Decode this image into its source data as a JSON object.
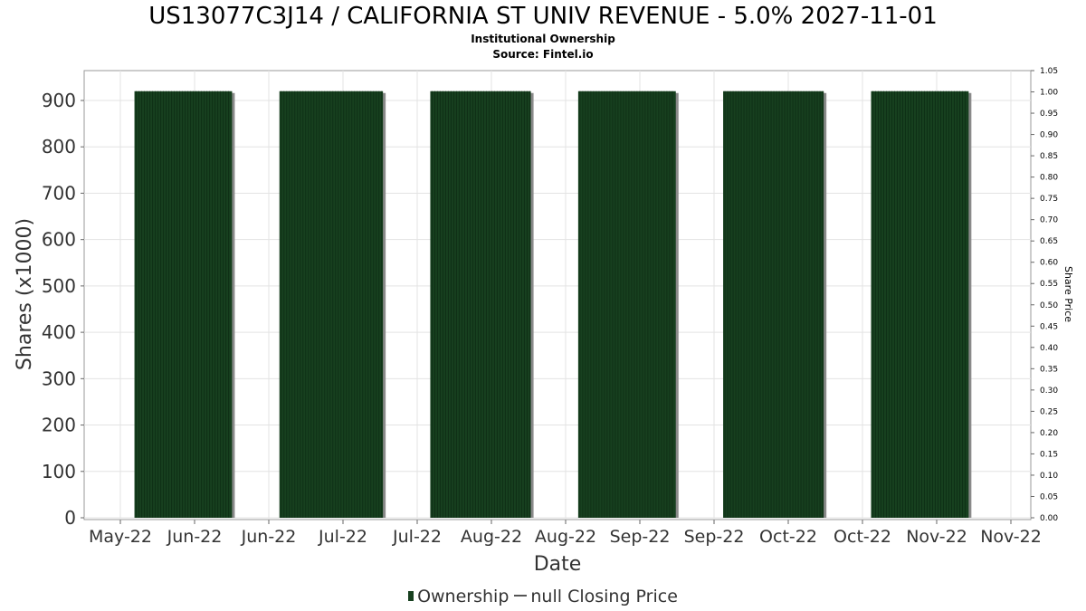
{
  "chart_data": {
    "type": "bar",
    "title": "US13077C3J14 / CALIFORNIA ST UNIV REVENUE - 5.0% 2027-11-01",
    "subtitle": "Institutional Ownership",
    "source": "Source: Fintel.io",
    "xlabel": "Date",
    "ylabel": "Shares (x1000)",
    "y2label": "Share Price",
    "x_tick_labels": [
      "May-22",
      "Jun-22",
      "Jun-22",
      "Jul-22",
      "Jul-22",
      "Aug-22",
      "Aug-22",
      "Sep-22",
      "Sep-22",
      "Oct-22",
      "Oct-22",
      "Nov-22",
      "Nov-22"
    ],
    "y_ticks": [
      0,
      100,
      200,
      300,
      400,
      500,
      600,
      700,
      800,
      900
    ],
    "y2_ticks": [
      "0.00",
      "0.05",
      "0.10",
      "0.15",
      "0.20",
      "0.25",
      "0.30",
      "0.35",
      "0.40",
      "0.45",
      "0.50",
      "0.55",
      "0.60",
      "0.65",
      "0.70",
      "0.75",
      "0.80",
      "0.85",
      "0.90",
      "0.95",
      "1.00",
      "1.05"
    ],
    "ylim": [
      0,
      900
    ],
    "y2lim": [
      0,
      1.05
    ],
    "grid": true,
    "legend_position": "bottom",
    "series": [
      {
        "name": "Ownership",
        "color": "#17401f",
        "bars": [
          {
            "start": "2022-05-27",
            "end": "2022-06-29",
            "value": 920
          },
          {
            "start": "2022-07-15",
            "end": "2022-08-19",
            "value": 920
          },
          {
            "start": "2022-09-04",
            "end": "2022-10-08",
            "value": 920
          },
          {
            "start": "2022-10-24",
            "end": "2022-11-26",
            "value": 920
          },
          {
            "start": "2022-12-12",
            "end": "2023-01-15",
            "value": 920
          },
          {
            "start": "2023-01-31",
            "end": "2023-03-05",
            "value": 920
          }
        ]
      },
      {
        "name": "null Closing Price",
        "color": "#555555",
        "values": []
      }
    ]
  }
}
